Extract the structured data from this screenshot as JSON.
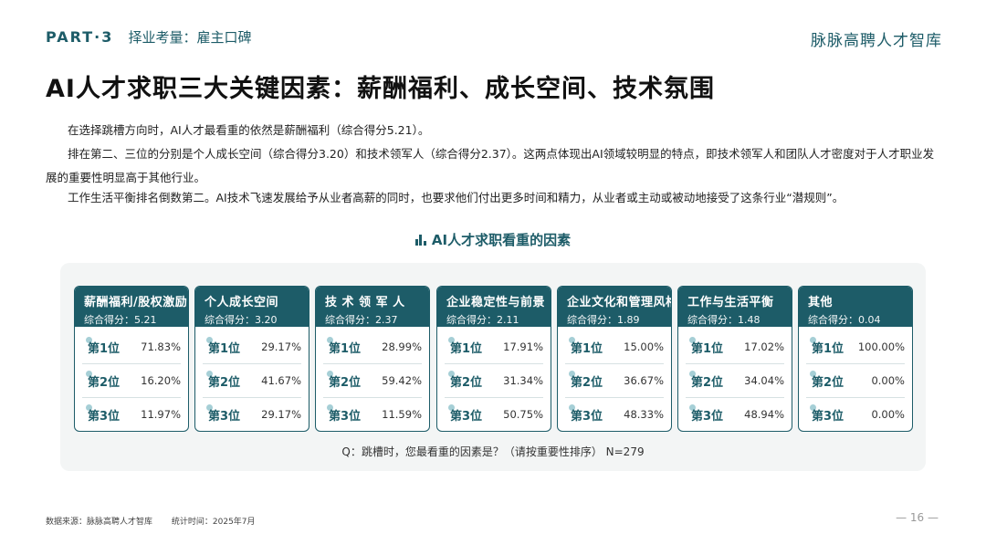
{
  "header": {
    "part": "PART·3",
    "section": "择业考量：雇主口碑",
    "brand": "脉脉高聘人才智库"
  },
  "title": "AI人才求职三大关键因素：薪酬福利、成长空间、技术氛围",
  "paragraphs": [
    "在选择跳槽方向时，AI人才最看重的依然是薪酬福利（综合得分5.21）。",
    "排在第二、三位的分别是个人成长空间（综合得分3.20）和技术领军人（综合得分2.37）。这两点体现出AI领域较明显的特点，即技术领军人和团队人才密度对于人才职业发展的重要性明显高于其他行业。",
    "工作生活平衡排名倒数第二。AI技术飞速发展给予从业者高薪的同时，也要求他们付出更多时间和精力，从业者或主动或被动地接受了这条行业“潜规则”。"
  ],
  "chart": {
    "title": "AI人才求职看重的因素",
    "note": "Q：跳槽时，您最看重的因素是？（请按重要性排序） N=279"
  },
  "chart_data": {
    "type": "table",
    "title": "AI人才求职看重的因素",
    "columns": [
      {
        "name": "薪酬福利/股权激励",
        "score_label": "综合得分：5.21",
        "score": 5.21,
        "ranks": [
          {
            "rank": "第1位",
            "value": "71.83%"
          },
          {
            "rank": "第2位",
            "value": "16.20%"
          },
          {
            "rank": "第3位",
            "value": "11.97%"
          }
        ]
      },
      {
        "name": "个人成长空间",
        "score_label": "综合得分：3.20",
        "score": 3.2,
        "ranks": [
          {
            "rank": "第1位",
            "value": "29.17%"
          },
          {
            "rank": "第2位",
            "value": "41.67%"
          },
          {
            "rank": "第3位",
            "value": "29.17%"
          }
        ]
      },
      {
        "name": "技 术 领 军 人",
        "score_label": "综合得分：2.37",
        "score": 2.37,
        "ranks": [
          {
            "rank": "第1位",
            "value": "28.99%"
          },
          {
            "rank": "第2位",
            "value": "59.42%"
          },
          {
            "rank": "第3位",
            "value": "11.59%"
          }
        ]
      },
      {
        "name": "企业稳定性与前景",
        "score_label": "综合得分：2.11",
        "score": 2.11,
        "ranks": [
          {
            "rank": "第1位",
            "value": "17.91%"
          },
          {
            "rank": "第2位",
            "value": "31.34%"
          },
          {
            "rank": "第3位",
            "value": "50.75%"
          }
        ]
      },
      {
        "name": "企业文化和管理风格",
        "score_label": "综合得分：1.89",
        "score": 1.89,
        "ranks": [
          {
            "rank": "第1位",
            "value": "15.00%"
          },
          {
            "rank": "第2位",
            "value": "36.67%"
          },
          {
            "rank": "第3位",
            "value": "48.33%"
          }
        ]
      },
      {
        "name": "工作与生活平衡",
        "score_label": "综合得分：1.48",
        "score": 1.48,
        "ranks": [
          {
            "rank": "第1位",
            "value": "17.02%"
          },
          {
            "rank": "第2位",
            "value": "34.04%"
          },
          {
            "rank": "第3位",
            "value": "48.94%"
          }
        ]
      },
      {
        "name": "其他",
        "score_label": "综合得分：0.04",
        "score": 0.04,
        "ranks": [
          {
            "rank": "第1位",
            "value": "100.00%"
          },
          {
            "rank": "第2位",
            "value": "0.00%"
          },
          {
            "rank": "第3位",
            "value": "0.00%"
          }
        ]
      }
    ]
  },
  "footer": {
    "source": "数据来源：脉脉高聘人才智库",
    "time": "统计时间：2025年7月",
    "page": "— 16 —"
  },
  "colors": {
    "accent": "#1d5c68",
    "dot": "#a6cfd6",
    "panel": "#f3f5f5"
  }
}
